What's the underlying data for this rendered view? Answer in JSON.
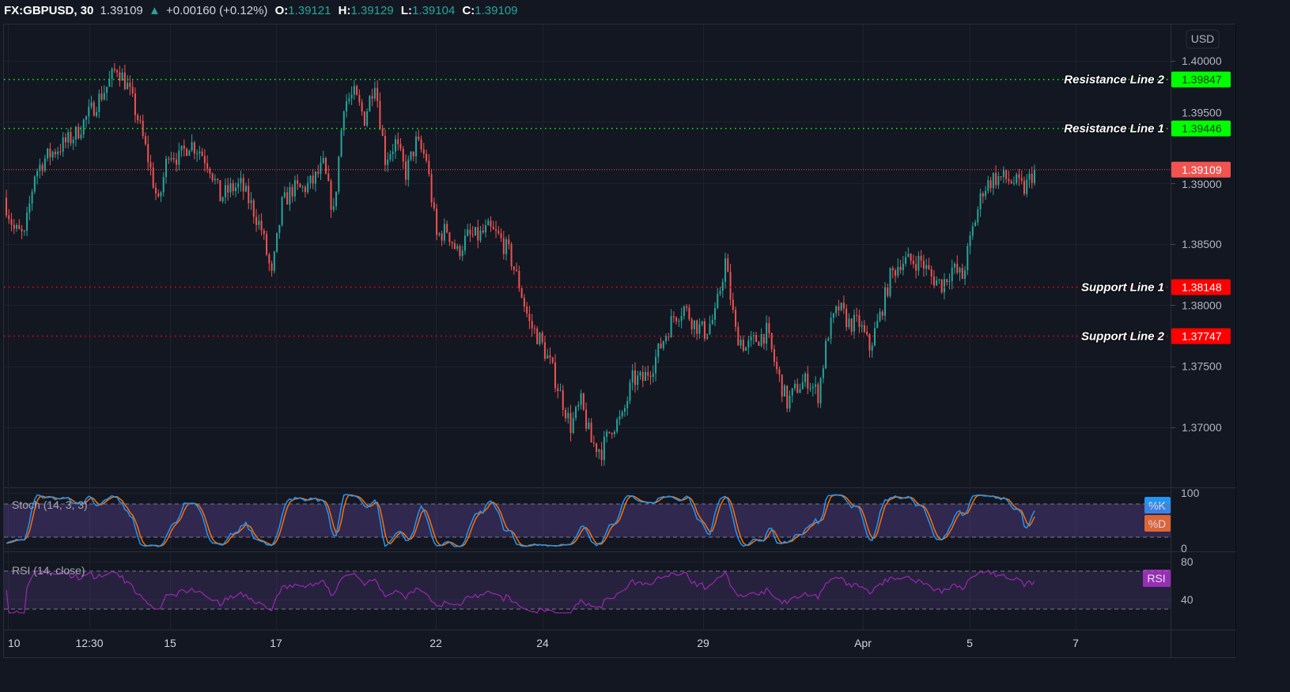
{
  "header": {
    "symbol": "FX:GBPUSD, 30",
    "last": "1.39109",
    "change": "+0.00160 (+0.12%)",
    "o_label": "O:",
    "o": "1.39121",
    "h_label": "H:",
    "h": "1.39129",
    "l_label": "L:",
    "l": "1.39104",
    "c_label": "C:",
    "c": "1.39109"
  },
  "currency_button": "USD",
  "colors": {
    "up": "#26a69a",
    "down": "#ef5350",
    "resistance": "#00ff00",
    "support": "#ff0000",
    "last_price": "#f05350",
    "stoch_k": "#2196f3",
    "stoch_d": "#ff6d00",
    "rsi": "#9c27b0",
    "background": "#131722"
  },
  "chart_data": [
    {
      "type": "candlestick",
      "symbol": "FX:GBPUSD",
      "interval": "30",
      "ylim": [
        1.366,
        1.4065
      ],
      "y_ticks": [
        "1.40000",
        "1.39500",
        "1.39000",
        "1.38500",
        "1.38000",
        "1.37500",
        "1.37000"
      ],
      "x_ticks": [
        "10",
        "12:30",
        "15",
        "17",
        "22",
        "24",
        "29",
        "Apr",
        "5",
        "7"
      ],
      "grid": true,
      "last_price": "1.39109",
      "approx_closes": [
        1.3888,
        1.3862,
        1.3856,
        1.3908,
        1.392,
        1.3927,
        1.3933,
        1.394,
        1.3953,
        1.3966,
        1.3979,
        1.3995,
        1.3979,
        1.3953,
        1.392,
        1.3882,
        1.3927,
        1.392,
        1.3933,
        1.3927,
        1.3914,
        1.3888,
        1.3895,
        1.3898,
        1.3882,
        1.3862,
        1.3823,
        1.3882,
        1.3895,
        1.3895,
        1.3901,
        1.3914,
        1.3875,
        1.3966,
        1.3972,
        1.3953,
        1.3985,
        1.392,
        1.3933,
        1.3908,
        1.3933,
        1.392,
        1.3856,
        1.3862,
        1.3843,
        1.3856,
        1.3856,
        1.3862,
        1.3856,
        1.3843,
        1.3817,
        1.3785,
        1.3772,
        1.3752,
        1.3727,
        1.3701,
        1.372,
        1.3688,
        1.3681,
        1.3701,
        1.3707,
        1.3739,
        1.3739,
        1.3752,
        1.3772,
        1.3791,
        1.3798,
        1.3785,
        1.3778,
        1.3791,
        1.3836,
        1.3778,
        1.3765,
        1.3772,
        1.3778,
        1.3746,
        1.372,
        1.3733,
        1.3739,
        1.3727,
        1.3778,
        1.3798,
        1.3785,
        1.3785,
        1.3765,
        1.3791,
        1.3823,
        1.3836,
        1.3836,
        1.3836,
        1.3823,
        1.3817,
        1.383,
        1.3823,
        1.3862,
        1.3895,
        1.3904,
        1.3904,
        1.3901,
        1.3895,
        1.39109
      ],
      "horizontal_lines": [
        {
          "label": "Resistance Line 2",
          "value": 1.39847,
          "value_text": "1.39847",
          "kind": "resistance"
        },
        {
          "label": "Resistance Line 1",
          "value": 1.39446,
          "value_text": "1.39446",
          "kind": "resistance"
        },
        {
          "label": "Support Line 1",
          "value": 1.38148,
          "value_text": "1.38148",
          "kind": "support"
        },
        {
          "label": "Support Line 2",
          "value": 1.37747,
          "value_text": "1.37747",
          "kind": "support"
        }
      ]
    },
    {
      "type": "line",
      "title": "Stoch (14, 3, 3)",
      "ylim": [
        0,
        100
      ],
      "y_ticks": [
        "100",
        "0"
      ],
      "bands": [
        20,
        80
      ],
      "series": [
        {
          "name": "%K"
        },
        {
          "name": "%D"
        }
      ]
    },
    {
      "type": "line",
      "title": "RSI (14, close)",
      "ylim": [
        30,
        85
      ],
      "y_ticks": [
        "80",
        "40"
      ],
      "bands": [
        30,
        70
      ],
      "series": [
        {
          "name": "RSI"
        }
      ]
    }
  ]
}
